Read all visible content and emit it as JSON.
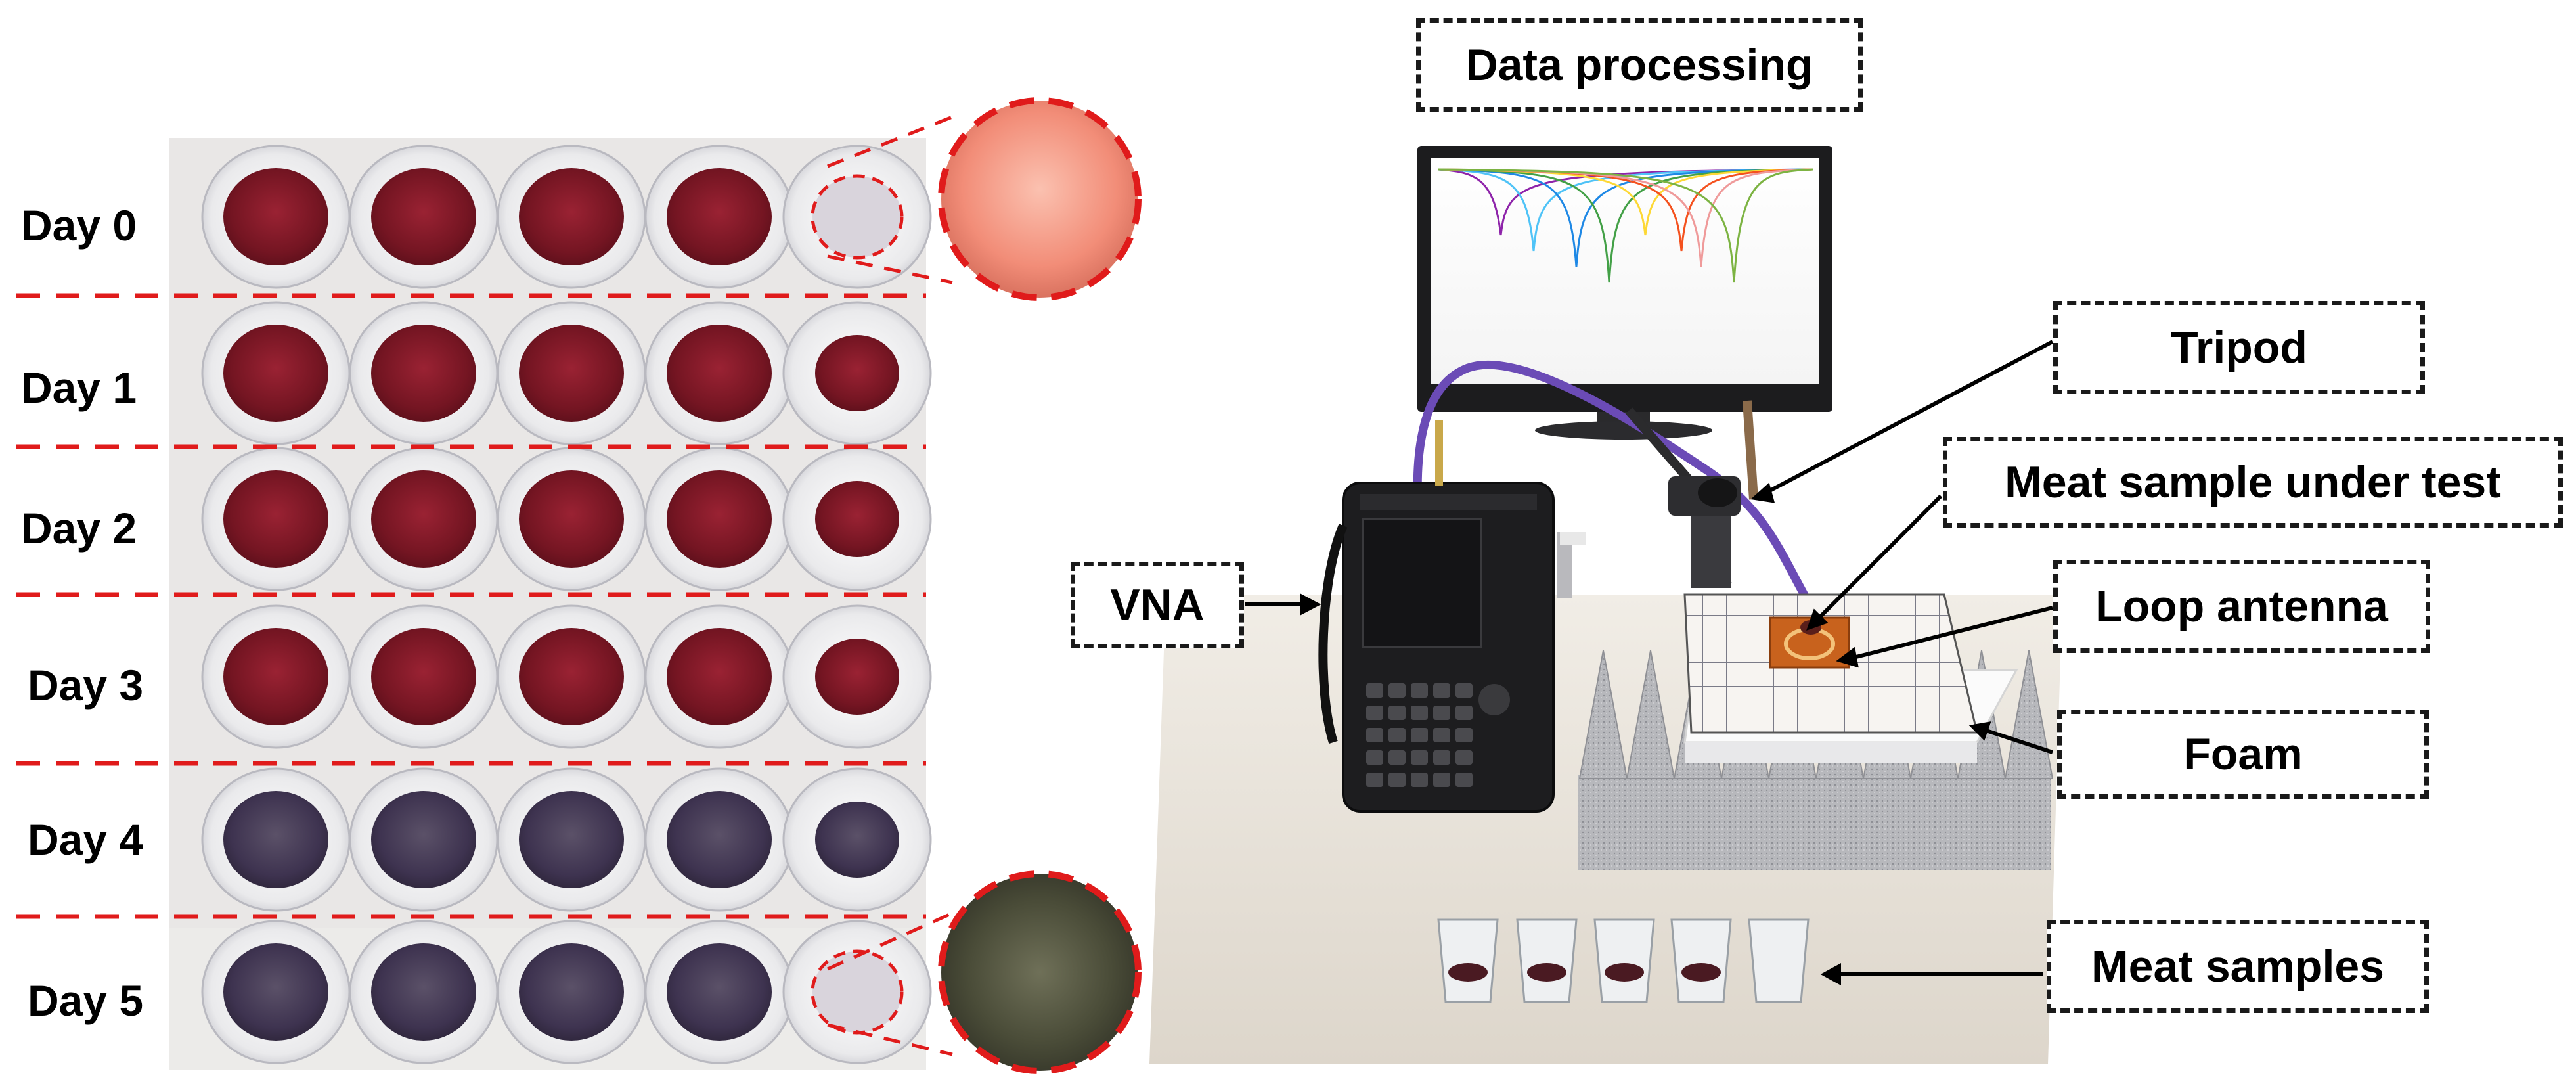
{
  "day_labels": [
    "Day 0",
    "Day 1",
    "Day 2",
    "Day 3",
    "Day 4",
    "Day 5"
  ],
  "callouts": {
    "data_processing": "Data processing",
    "tripod": "Tripod",
    "meat_sample_under_test": "Meat sample under test",
    "loop_antenna": "Loop antenna",
    "vna": "VNA",
    "foam": "Foam",
    "meat_samples": "Meat samples"
  },
  "colors": {
    "dashed_red": "#e01b1b",
    "meat_fresh": "#7a1624",
    "meat_spoiled": "#3d2f4a",
    "zoom_fresh": "#f4a08c",
    "zoom_spoiled": "#4a4e3a"
  }
}
